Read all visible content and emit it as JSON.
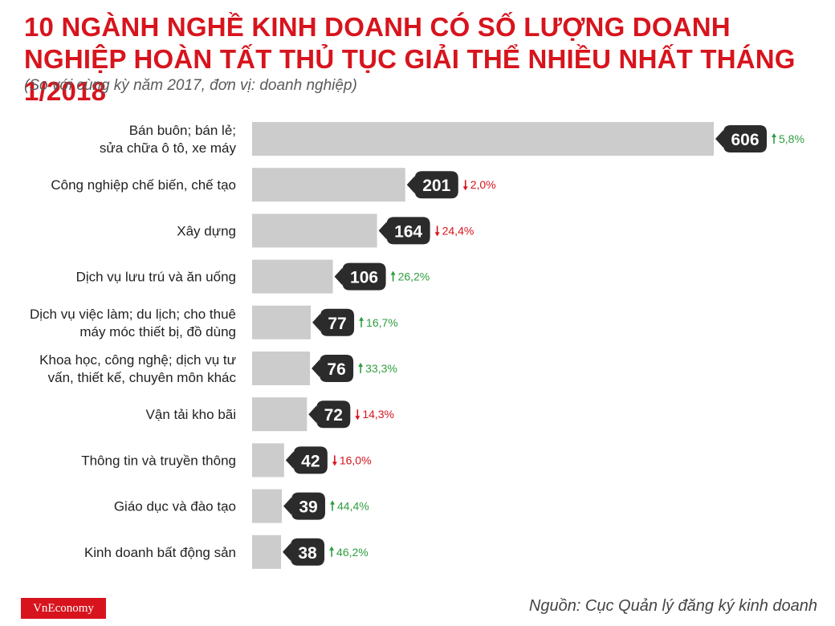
{
  "header": {
    "title": "10 NGÀNH NGHỀ KINH DOANH CÓ SỐ LƯỢNG DOANH NGHIỆP HOÀN TẤT THỦ TỤC GIẢI THỂ NHIỀU NHẤT THÁNG 1/2018",
    "subtitle": "(So với cùng kỳ năm 2017, đơn vị: doanh nghiệp)"
  },
  "footer": {
    "logo": "VnEconomy",
    "source": "Nguồn: Cục Quản lý đăng ký kinh doanh"
  },
  "colors": {
    "title": "#d7141d",
    "bar": "#cccccc",
    "bubble": "#2b2b2b",
    "increase": "#2e9e3e",
    "decrease": "#d7141d"
  },
  "chart_data": {
    "type": "bar",
    "orientation": "horizontal",
    "categories": [
      [
        "Bán buôn; bán lẻ;",
        "sửa chữa ô tô, xe máy"
      ],
      [
        "Công nghiệp chế biến, chế tạo"
      ],
      [
        "Xây dựng"
      ],
      [
        "Dịch vụ lưu trú và ăn uống"
      ],
      [
        "Dịch vụ việc làm; du lịch; cho thuê",
        "máy móc thiết bị, đồ dùng"
      ],
      [
        "Khoa học, công nghệ; dịch vụ tư",
        "vấn, thiết kế, chuyên môn khác"
      ],
      [
        "Vận tải kho bãi"
      ],
      [
        "Thông tin và truyền thông"
      ],
      [
        "Giáo dục và đào tạo"
      ],
      [
        "Kinh doanh bất động sản"
      ]
    ],
    "values": [
      606,
      201,
      164,
      106,
      77,
      76,
      72,
      42,
      39,
      38
    ],
    "changes": [
      "5,8%",
      "2,0%",
      "24,4%",
      "26,2%",
      "16,7%",
      "33,3%",
      "14,3%",
      "16,0%",
      "44,4%",
      "46,2%"
    ],
    "change_direction": [
      "up",
      "down",
      "down",
      "up",
      "up",
      "up",
      "down",
      "down",
      "up",
      "up"
    ],
    "xlim": [
      0,
      606
    ],
    "grid": false,
    "legend": "none"
  }
}
